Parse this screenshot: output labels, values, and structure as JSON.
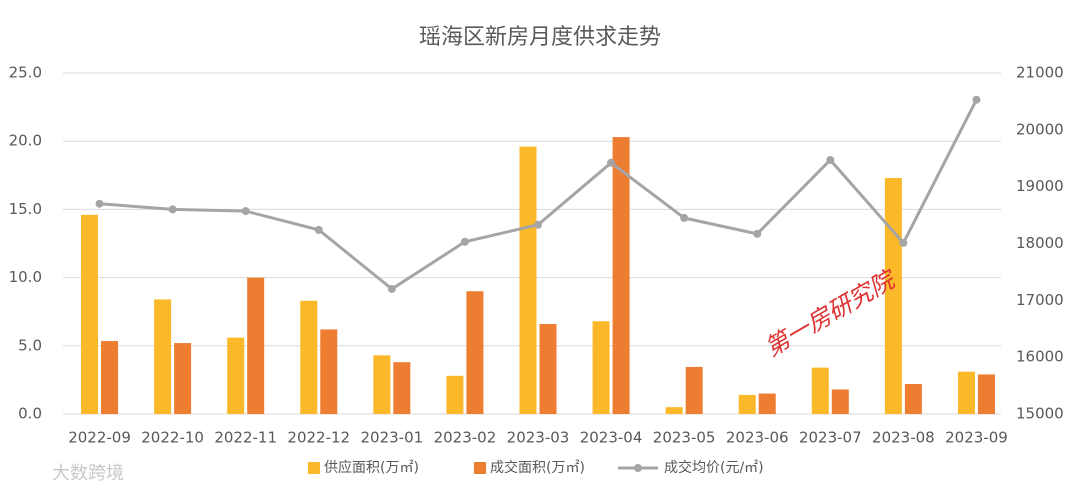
{
  "chart_data": {
    "type": "bar_line",
    "title": "瑶海区新房月度供求走势",
    "categories": [
      "2022-09",
      "2022-10",
      "2022-11",
      "2022-12",
      "2023-01",
      "2023-02",
      "2023-03",
      "2023-04",
      "2023-05",
      "2023-06",
      "2023-07",
      "2023-08",
      "2023-09"
    ],
    "series": [
      {
        "name": "供应面积(万㎡)",
        "color": "#fbb829",
        "type": "bar",
        "values": [
          14.6,
          8.4,
          5.6,
          8.3,
          4.3,
          2.8,
          19.6,
          6.8,
          0.5,
          1.4,
          3.4,
          17.3,
          3.1
        ]
      },
      {
        "name": "成交面积(万㎡)",
        "color": "#ed7d31",
        "type": "bar",
        "values": [
          5.35,
          5.2,
          10.0,
          6.2,
          3.8,
          9.0,
          6.6,
          20.3,
          3.45,
          1.5,
          1.8,
          2.2,
          2.9
        ]
      },
      {
        "name": "成交均价(元/㎡)",
        "color": "#a5a5a5",
        "type": "line",
        "axis": "y2",
        "values": [
          18700,
          18600,
          18570,
          18240,
          17200,
          18030,
          18330,
          19420,
          18450,
          18170,
          19470,
          18010,
          20530
        ]
      }
    ],
    "ylim": [
      0,
      25
    ],
    "yticks": [
      {
        "value": 0,
        "label": "0.0"
      },
      {
        "value": 5,
        "label": "5.0"
      },
      {
        "value": 10,
        "label": "10.0"
      },
      {
        "value": 15,
        "label": "15.0"
      },
      {
        "value": 20,
        "label": "20.0"
      },
      {
        "value": 25,
        "label": "25.0"
      }
    ],
    "y2lim": [
      15000,
      21000
    ],
    "y2ticks": [
      15000,
      16000,
      17000,
      18000,
      19000,
      20000,
      21000
    ],
    "grid": true,
    "legend": "bottom",
    "watermarks": [
      "第一房研究院",
      "大数跨境"
    ]
  }
}
